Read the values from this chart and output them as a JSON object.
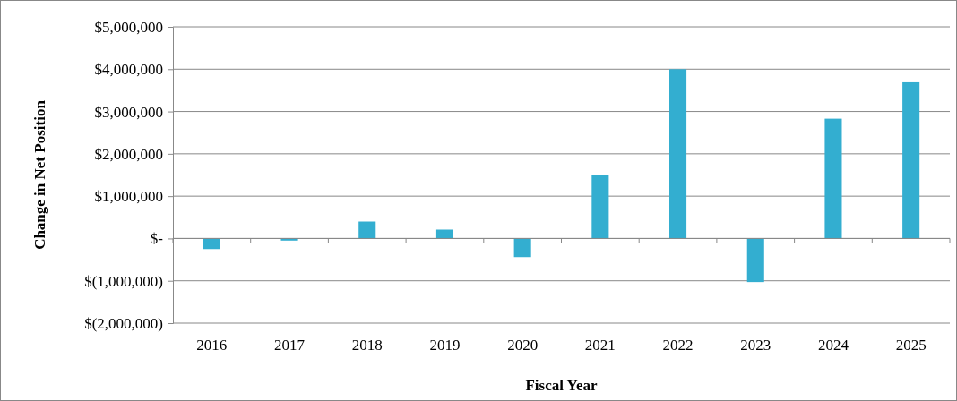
{
  "chart_data": {
    "type": "bar",
    "xlabel": "Fiscal Year",
    "ylabel": "Change in Net Position",
    "categories": [
      "2016",
      "2017",
      "2018",
      "2019",
      "2020",
      "2021",
      "2022",
      "2023",
      "2024",
      "2025"
    ],
    "values": [
      -250000,
      -50000,
      400000,
      210000,
      -440000,
      1500000,
      4000000,
      -1030000,
      2830000,
      3690000
    ],
    "color": "#33aed0",
    "ylim": [
      -2000000,
      5000000
    ],
    "yticks": [
      {
        "value": -2000000,
        "label": "$(2,000,000)"
      },
      {
        "value": -1000000,
        "label": "$(1,000,000)"
      },
      {
        "value": 0,
        "label": "$-"
      },
      {
        "value": 1000000,
        "label": "$1,000,000"
      },
      {
        "value": 2000000,
        "label": "$2,000,000"
      },
      {
        "value": 3000000,
        "label": "$3,000,000"
      },
      {
        "value": 4000000,
        "label": "$4,000,000"
      },
      {
        "value": 5000000,
        "label": "$5,000,000"
      }
    ],
    "grid": "y"
  }
}
